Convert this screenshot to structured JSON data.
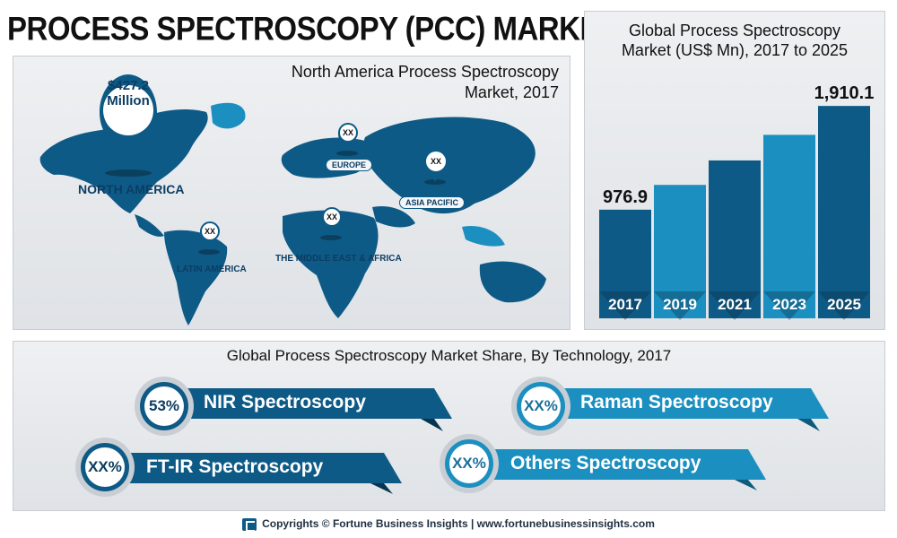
{
  "title": "PROCESS SPECTROSCOPY (PCC) MARKET",
  "map": {
    "title_line1": "North America Process Spectroscopy",
    "title_line2": "Market, 2017",
    "north_america": {
      "value": "$427.2",
      "unit": "Million",
      "label": "NORTH AMERICA"
    },
    "regions": [
      {
        "label": "EUROPE",
        "value": "XX"
      },
      {
        "label": "ASIA PACIFIC",
        "value": "XX"
      },
      {
        "label": "THE MIDDLE EAST & AFRICA",
        "value": "XX"
      },
      {
        "label": "LATIN AMERICA",
        "value": "XX"
      }
    ],
    "colors": {
      "land_dark": "#0e5a86",
      "land_light": "#1b8fc0"
    }
  },
  "chart_data": {
    "type": "bar",
    "title": "Global Process Spectroscopy Market (US$ Mn), 2017 to 2025",
    "title_line1": "Global Process Spectroscopy",
    "title_line2": "Market (US$ Mn), 2017 to 2025",
    "categories": [
      "2017",
      "2019",
      "2021",
      "2023",
      "2025"
    ],
    "values": [
      976.9,
      1200,
      1420,
      1650,
      1910.1
    ],
    "data_labels": [
      "976.9",
      "",
      "",
      "",
      "1,910.1"
    ],
    "colors": [
      "#0e5a86",
      "#1b8fc0",
      "#0e5a86",
      "#1b8fc0",
      "#0e5a86"
    ],
    "ylim": [
      0,
      2000
    ],
    "grid": false
  },
  "share": {
    "title": "Global Process Spectroscopy Market Share, By Technology, 2017",
    "items": [
      {
        "pct": "53%",
        "label": "NIR Spectroscopy",
        "color": "#0e5a86"
      },
      {
        "pct": "XX%",
        "label": "Raman Spectroscopy",
        "color": "#1b8fc0"
      },
      {
        "pct": "XX%",
        "label": "FT-IR Spectroscopy",
        "color": "#0e5a86"
      },
      {
        "pct": "XX%",
        "label": "Others Spectroscopy",
        "color": "#1b8fc0"
      }
    ]
  },
  "footer": "Copyrights © Fortune Business Insights | www.fortunebusinessinsights.com"
}
